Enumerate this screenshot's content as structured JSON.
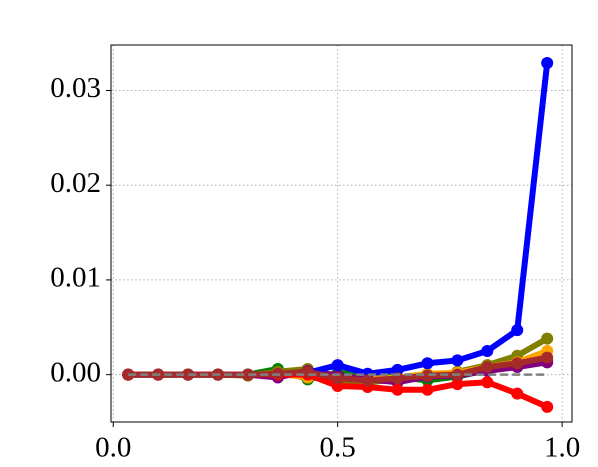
{
  "chart_data": {
    "type": "line",
    "x": [
      0.0333,
      0.1,
      0.1667,
      0.2333,
      0.3,
      0.3667,
      0.4333,
      0.5,
      0.5667,
      0.6333,
      0.7,
      0.7667,
      0.8333,
      0.9,
      0.9667
    ],
    "series": [
      {
        "color": "#008000",
        "values": [
          0,
          0,
          0,
          0,
          0,
          0.0006,
          -0.0005,
          0.0002,
          0,
          -0.0003,
          -0.0006,
          -0.0002,
          0.0005,
          0.001,
          0.0015
        ]
      },
      {
        "color": "#808000",
        "values": [
          0,
          0,
          0,
          0,
          -0.0001,
          0.0003,
          0.0006,
          -0.0006,
          -0.0008,
          -0.0005,
          -0.0002,
          0.0003,
          0.001,
          0.002,
          0.0038
        ]
      },
      {
        "color": "#ffa500",
        "values": [
          0,
          0,
          0,
          0,
          0,
          0.0001,
          -0.0003,
          -0.0002,
          -0.0004,
          -0.0003,
          0.0001,
          0.0002,
          0.0008,
          0.0013,
          0.0025
        ]
      },
      {
        "color": "#800080",
        "values": [
          0,
          0,
          0,
          0,
          0,
          -0.0003,
          0.0004,
          -0.0001,
          -0.0005,
          -0.0008,
          -0.0002,
          -0.0001,
          0.0004,
          0.0008,
          0.0013
        ]
      },
      {
        "color": "#0000ff",
        "values": [
          0,
          0,
          0,
          0,
          0,
          0,
          0.0002,
          0.001,
          0.0001,
          0.0005,
          0.0012,
          0.0015,
          0.0025,
          0.0047,
          0.0329
        ]
      },
      {
        "color": "#ff0000",
        "values": [
          0,
          0,
          0,
          0,
          0,
          0,
          0,
          -0.0012,
          -0.0013,
          -0.0016,
          -0.0016,
          -0.001,
          -0.0008,
          -0.002,
          -0.0034
        ]
      },
      {
        "color": "#a52a2a",
        "values": [
          0,
          0,
          0,
          0,
          0,
          0.0001,
          0.0003,
          -0.0004,
          -0.0006,
          -0.0004,
          -0.0001,
          0,
          0.0008,
          0.0012,
          0.0018
        ]
      }
    ],
    "xlim": [
      -0.005,
      1.022
    ],
    "ylim": [
      -0.005,
      0.0348
    ],
    "xticks": [
      {
        "value": 0,
        "label": "0.0"
      },
      {
        "value": 0.5,
        "label": "0.5"
      },
      {
        "value": 1,
        "label": "1.0"
      }
    ],
    "yticks": [
      {
        "value": 0,
        "label": "0.00"
      },
      {
        "value": 0.01,
        "label": "0.01"
      },
      {
        "value": 0.02,
        "label": "0.02"
      },
      {
        "value": 0.03,
        "label": "0.03"
      }
    ],
    "hline": {
      "value": 0,
      "color": "#808080"
    },
    "grid": true
  }
}
